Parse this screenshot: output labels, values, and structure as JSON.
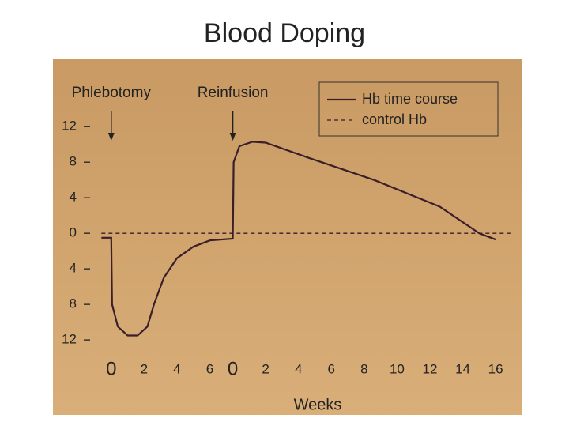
{
  "chart_data": {
    "type": "line",
    "title": "Blood Doping",
    "x_label": "Weeks",
    "series": [
      {
        "name": "Hb time course",
        "color": "#3a1e2a",
        "dash": false,
        "x": [
          -0.6,
          0,
          0.05,
          0.4,
          1,
          1.6,
          2.2,
          2.6,
          3.2,
          4,
          5,
          6,
          7.4,
          7.45,
          7.8,
          8.6,
          9.4,
          12,
          16,
          20,
          22.4,
          23.4
        ],
        "values": [
          -0.5,
          -0.5,
          -8,
          -10.5,
          -11.5,
          -11.5,
          -10.5,
          -8,
          -5,
          -2.8,
          -1.5,
          -0.8,
          -0.6,
          8,
          9.8,
          10.3,
          10.2,
          8.5,
          6,
          3,
          0,
          -0.7
        ]
      },
      {
        "name": "control Hb",
        "color": "#3a1e2a",
        "dash": true,
        "x": [
          -0.6,
          24.3
        ],
        "values": [
          0,
          0
        ]
      }
    ],
    "annotations": [
      {
        "text": "Phlebotomy",
        "x": 0
      },
      {
        "text": "Reinfusion",
        "x": 7.4
      }
    ],
    "xlim": [
      -1,
      24.5
    ],
    "ylim": [
      -13.5,
      17
    ],
    "xticks": [
      0,
      2,
      4,
      6,
      {
        "value": 7.4,
        "label": "0"
      },
      {
        "value": 9.4,
        "label": "2"
      },
      {
        "value": 11.4,
        "label": "4"
      },
      {
        "value": 13.4,
        "label": "6"
      },
      {
        "value": 15.4,
        "label": "8"
      },
      {
        "value": 17.4,
        "label": "10"
      },
      {
        "value": 19.4,
        "label": "12"
      },
      {
        "value": 21.4,
        "label": "14"
      },
      {
        "value": 23.4,
        "label": "16"
      }
    ],
    "yticks": [
      12,
      8,
      4,
      0,
      {
        "value": -4,
        "label": "4"
      },
      {
        "value": -8,
        "label": "8"
      },
      {
        "value": -12,
        "label": "12"
      }
    ],
    "legend": "top-right"
  }
}
